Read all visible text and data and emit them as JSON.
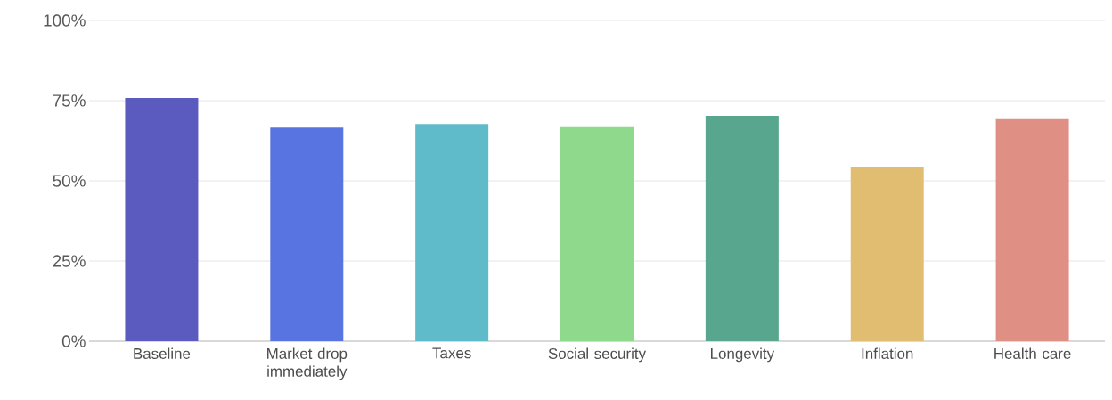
{
  "chart_data": {
    "type": "bar",
    "categories": [
      "Baseline",
      "Market drop immediately",
      "Taxes",
      "Social security",
      "Longevity",
      "Inflation",
      "Health care"
    ],
    "values": [
      75.8,
      66.6,
      67.7,
      67.0,
      70.3,
      54.4,
      69.2
    ],
    "colors": [
      "#5b5abf",
      "#5874e0",
      "#5fbbca",
      "#8fd98d",
      "#57a68d",
      "#e1bd72",
      "#e08f84"
    ],
    "ylim": [
      0,
      100
    ],
    "yticks": [
      {
        "value": 0,
        "label": "0%"
      },
      {
        "value": 25,
        "label": "25%"
      },
      {
        "value": 50,
        "label": "50%"
      },
      {
        "value": 75,
        "label": "75%"
      },
      {
        "value": 100,
        "label": "100%"
      }
    ],
    "grid": "y"
  }
}
